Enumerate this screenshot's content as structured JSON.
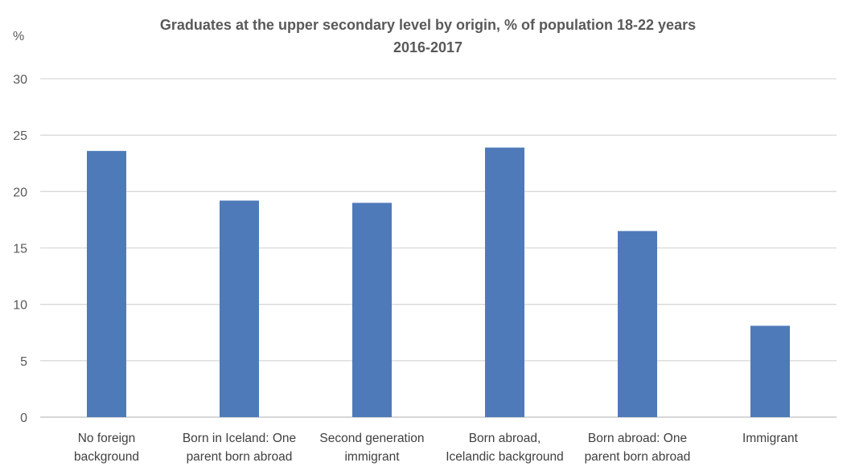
{
  "chart_data": {
    "type": "bar",
    "title": "Graduates at the upper secondary level by origin, % of population 18-22 years",
    "subtitle": "2016-2017",
    "ylabel": "%",
    "xlabel": "",
    "ylim": [
      0,
      30
    ],
    "yticks": [
      0,
      5,
      10,
      15,
      20,
      25,
      30
    ],
    "grid": true,
    "categories": [
      [
        "No foreign",
        "background"
      ],
      [
        "Born in Iceland: One",
        "parent born abroad"
      ],
      [
        "Second generation",
        "immigrant"
      ],
      [
        "Born abroad,",
        "Icelandic background"
      ],
      [
        "Born abroad: One",
        "parent born abroad"
      ],
      [
        "Immigrant"
      ]
    ],
    "values": [
      23.6,
      19.2,
      19.0,
      23.9,
      16.5,
      8.1
    ],
    "colors": {
      "bar": "#4F7ABA",
      "grid": "#D9D9D9",
      "axis": "#BFBFBF"
    }
  }
}
